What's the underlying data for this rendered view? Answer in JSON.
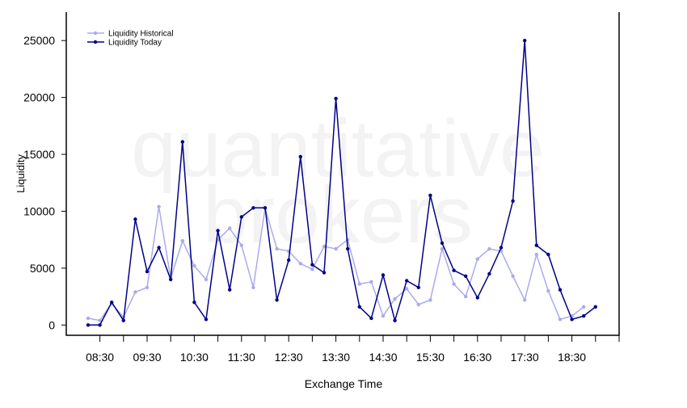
{
  "chart_data": {
    "type": "line",
    "title": "",
    "xlabel": "Exchange Time",
    "ylabel": "Liquidity",
    "watermark": [
      "quantitative",
      "brokers"
    ],
    "x_tick_labels": [
      "08:30",
      "09:30",
      "10:30",
      "11:30",
      "12:30",
      "13:30",
      "14:30",
      "15:30",
      "16:30",
      "17:30",
      "18:30"
    ],
    "y_ticks": [
      0,
      5000,
      10000,
      15000,
      20000,
      25000
    ],
    "ylim": [
      -900,
      27500
    ],
    "x_start": "08:15",
    "x_step_minutes": 15,
    "legend_position": "top-left",
    "series": [
      {
        "name": "Liquidity Historical",
        "color": "#aaaaee",
        "values": [
          600,
          400,
          1900,
          700,
          2900,
          3300,
          10400,
          4100,
          7400,
          5200,
          4000,
          7500,
          8500,
          7000,
          3300,
          10300,
          6700,
          6500,
          5400,
          4900,
          6900,
          6700,
          7500,
          3600,
          3800,
          800,
          2300,
          3200,
          1800,
          2200,
          6700,
          3600,
          2500,
          5800,
          6700,
          6500,
          4300,
          2200,
          6200,
          3000,
          500,
          800,
          1600
        ]
      },
      {
        "name": "Liquidity Today",
        "color": "#000088",
        "values": [
          0,
          0,
          2000,
          400,
          9300,
          4700,
          6800,
          4000,
          16100,
          2000,
          500,
          8300,
          3100,
          9500,
          10300,
          10300,
          2200,
          5700,
          14800,
          5300,
          4600,
          19900,
          6700,
          1600,
          600,
          4400,
          400,
          3900,
          3300,
          11400,
          7200,
          4800,
          4300,
          2400,
          4500,
          6800,
          10900,
          25000,
          7000,
          6200,
          3100,
          500,
          800,
          1600
        ]
      }
    ]
  }
}
